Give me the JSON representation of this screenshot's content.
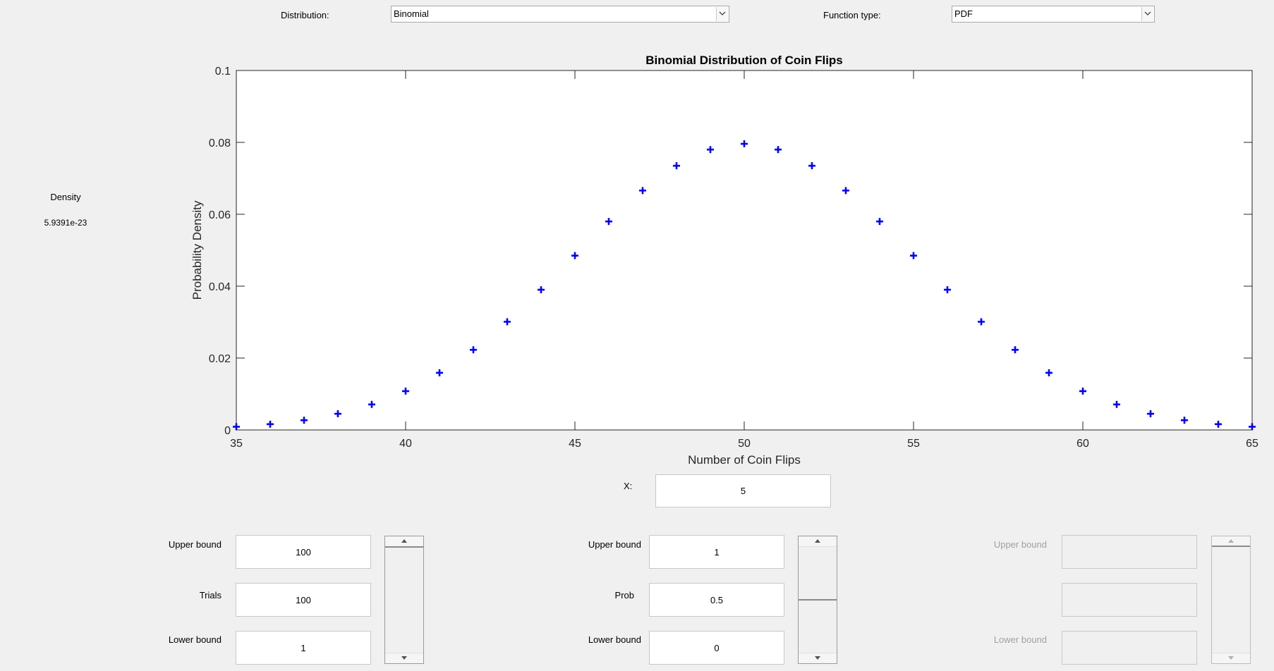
{
  "controls": {
    "distribution_label": "Distribution:",
    "distribution_value": "Binomial",
    "function_type_label": "Function type:",
    "function_type_value": "PDF"
  },
  "readout": {
    "density_label": "Density",
    "density_value": "5.9391e-23"
  },
  "x_input": {
    "label": "X:",
    "value": "5"
  },
  "param1": {
    "upper_label": "Upper bound",
    "upper_value": "100",
    "name_label": "Trials",
    "value": "100",
    "lower_label": "Lower bound",
    "lower_value": "1",
    "slider_level": 1.0
  },
  "param2": {
    "upper_label": "Upper bound",
    "upper_value": "1",
    "name_label": "Prob",
    "value": "0.5",
    "lower_label": "Lower bound",
    "lower_value": "0",
    "slider_level": 0.5
  },
  "param3": {
    "upper_label": "Upper bound",
    "lower_label": "Lower bound",
    "enabled": false
  },
  "colors": {
    "marker": "#0000ff",
    "axes": "#262626",
    "disabled_text": "#a0a0a0",
    "background": "#f0f0f0"
  },
  "chart_data": {
    "type": "scatter",
    "marker": "+",
    "title": "Binomial Distribution of Coin Flips",
    "xlabel": "Number of Coin Flips",
    "ylabel": "Probability Density",
    "xlim": [
      35,
      65
    ],
    "ylim": [
      0,
      0.1
    ],
    "xticks": [
      "35",
      "40",
      "45",
      "50",
      "55",
      "60",
      "65"
    ],
    "yticks": [
      "0",
      "0.02",
      "0.04",
      "0.06",
      "0.08",
      "0.1"
    ],
    "x": [
      35,
      36,
      37,
      38,
      39,
      40,
      41,
      42,
      43,
      44,
      45,
      46,
      47,
      48,
      49,
      50,
      51,
      52,
      53,
      54,
      55,
      56,
      57,
      58,
      59,
      60,
      61,
      62,
      63,
      64,
      65
    ],
    "y": [
      0.0009,
      0.0016,
      0.0027,
      0.0045,
      0.0071,
      0.0108,
      0.0159,
      0.0223,
      0.0301,
      0.039,
      0.0485,
      0.058,
      0.0666,
      0.0735,
      0.078,
      0.0796,
      0.078,
      0.0735,
      0.0666,
      0.058,
      0.0485,
      0.039,
      0.0301,
      0.0223,
      0.0159,
      0.0108,
      0.0071,
      0.0045,
      0.0027,
      0.0016,
      0.0009
    ],
    "grid": false
  }
}
